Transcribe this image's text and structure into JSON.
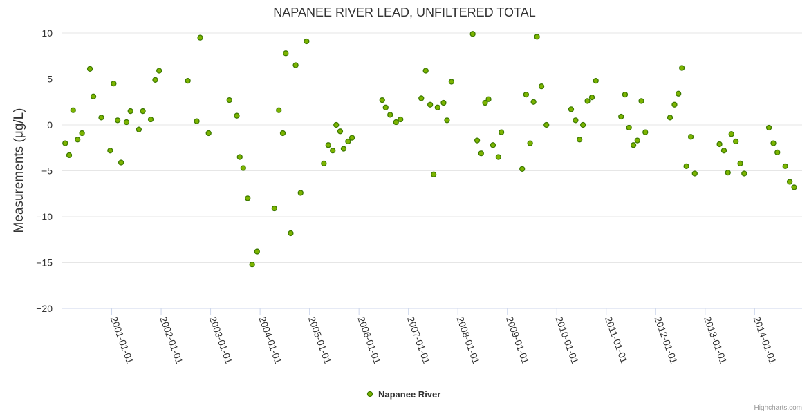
{
  "chart_data": {
    "type": "scatter",
    "title": "NAPANEE RIVER LEAD, UNFILTERED TOTAL",
    "ylabel": "Measurements (μg/L)",
    "xlabel": "",
    "ylim": [
      -20,
      10
    ],
    "yticks": [
      10,
      5,
      0,
      -5,
      -10,
      -15,
      -20
    ],
    "ytick_labels": [
      "10",
      "5",
      "0",
      "−5",
      "−10",
      "−15",
      "−20"
    ],
    "x_is_date": true,
    "xlim": [
      2000.0,
      2014.96
    ],
    "xticks": [
      {
        "value": 2001.0,
        "label": "2001-01-01"
      },
      {
        "value": 2002.0,
        "label": "2002-01-01"
      },
      {
        "value": 2003.0,
        "label": "2003-01-01"
      },
      {
        "value": 2004.0,
        "label": "2004-01-01"
      },
      {
        "value": 2005.0,
        "label": "2005-01-01"
      },
      {
        "value": 2006.0,
        "label": "2006-01-01"
      },
      {
        "value": 2007.0,
        "label": "2007-01-01"
      },
      {
        "value": 2008.0,
        "label": "2008-01-01"
      },
      {
        "value": 2009.0,
        "label": "2009-01-01"
      },
      {
        "value": 2010.0,
        "label": "2010-01-01"
      },
      {
        "value": 2011.0,
        "label": "2011-01-01"
      },
      {
        "value": 2012.0,
        "label": "2012-01-01"
      },
      {
        "value": 2013.0,
        "label": "2013-01-01"
      },
      {
        "value": 2014.0,
        "label": "2014-01-01"
      }
    ],
    "series": [
      {
        "name": "Napanee River",
        "color": "#7cb400",
        "stroke": "#3d7a00",
        "points": [
          {
            "x": 2000.06,
            "y": -2.0
          },
          {
            "x": 2000.14,
            "y": -3.3
          },
          {
            "x": 2000.22,
            "y": 1.6
          },
          {
            "x": 2000.31,
            "y": -1.6
          },
          {
            "x": 2000.4,
            "y": -0.9
          },
          {
            "x": 2000.56,
            "y": 6.1
          },
          {
            "x": 2000.63,
            "y": 3.1
          },
          {
            "x": 2000.79,
            "y": 0.8
          },
          {
            "x": 2000.97,
            "y": -2.8
          },
          {
            "x": 2001.04,
            "y": 4.5
          },
          {
            "x": 2001.12,
            "y": 0.5
          },
          {
            "x": 2001.19,
            "y": -4.1
          },
          {
            "x": 2001.3,
            "y": 0.3
          },
          {
            "x": 2001.38,
            "y": 1.5
          },
          {
            "x": 2001.55,
            "y": -0.5
          },
          {
            "x": 2001.63,
            "y": 1.5
          },
          {
            "x": 2001.79,
            "y": 0.6
          },
          {
            "x": 2001.88,
            "y": 4.9
          },
          {
            "x": 2001.96,
            "y": 5.9
          },
          {
            "x": 2002.54,
            "y": 4.8
          },
          {
            "x": 2002.72,
            "y": 0.4
          },
          {
            "x": 2002.79,
            "y": 9.5
          },
          {
            "x": 2002.96,
            "y": -0.9
          },
          {
            "x": 2003.38,
            "y": 2.7
          },
          {
            "x": 2003.53,
            "y": 1.0
          },
          {
            "x": 2003.59,
            "y": -3.5
          },
          {
            "x": 2003.66,
            "y": -4.7
          },
          {
            "x": 2003.75,
            "y": -8.0
          },
          {
            "x": 2003.84,
            "y": -15.2
          },
          {
            "x": 2003.94,
            "y": -13.8
          },
          {
            "x": 2004.29,
            "y": -9.1
          },
          {
            "x": 2004.38,
            "y": 1.6
          },
          {
            "x": 2004.46,
            "y": -0.9
          },
          {
            "x": 2004.52,
            "y": 7.8
          },
          {
            "x": 2004.62,
            "y": -11.8
          },
          {
            "x": 2004.72,
            "y": 6.5
          },
          {
            "x": 2004.82,
            "y": -7.4
          },
          {
            "x": 2004.94,
            "y": 9.1
          },
          {
            "x": 2005.29,
            "y": -4.2
          },
          {
            "x": 2005.38,
            "y": -2.2
          },
          {
            "x": 2005.47,
            "y": -2.8
          },
          {
            "x": 2005.54,
            "y": 0.0
          },
          {
            "x": 2005.62,
            "y": -0.7
          },
          {
            "x": 2005.69,
            "y": -2.6
          },
          {
            "x": 2005.78,
            "y": -1.8
          },
          {
            "x": 2005.86,
            "y": -1.4
          },
          {
            "x": 2006.47,
            "y": 2.7
          },
          {
            "x": 2006.54,
            "y": 1.9
          },
          {
            "x": 2006.63,
            "y": 1.1
          },
          {
            "x": 2006.75,
            "y": 0.3
          },
          {
            "x": 2006.84,
            "y": 0.6
          },
          {
            "x": 2007.26,
            "y": 2.9
          },
          {
            "x": 2007.35,
            "y": 5.9
          },
          {
            "x": 2007.44,
            "y": 2.2
          },
          {
            "x": 2007.51,
            "y": -5.4
          },
          {
            "x": 2007.59,
            "y": 1.9
          },
          {
            "x": 2007.71,
            "y": 2.4
          },
          {
            "x": 2007.78,
            "y": 0.5
          },
          {
            "x": 2007.87,
            "y": 4.7
          },
          {
            "x": 2008.3,
            "y": 9.9
          },
          {
            "x": 2008.39,
            "y": -1.7
          },
          {
            "x": 2008.47,
            "y": -3.1
          },
          {
            "x": 2008.55,
            "y": 2.4
          },
          {
            "x": 2008.62,
            "y": 2.8
          },
          {
            "x": 2008.71,
            "y": -2.2
          },
          {
            "x": 2008.82,
            "y": -3.5
          },
          {
            "x": 2008.88,
            "y": -0.8
          },
          {
            "x": 2009.3,
            "y": -4.8
          },
          {
            "x": 2009.38,
            "y": 3.3
          },
          {
            "x": 2009.46,
            "y": -2.0
          },
          {
            "x": 2009.53,
            "y": 2.5
          },
          {
            "x": 2009.6,
            "y": 9.6
          },
          {
            "x": 2009.69,
            "y": 4.2
          },
          {
            "x": 2009.79,
            "y": 0.0
          },
          {
            "x": 2010.29,
            "y": 1.7
          },
          {
            "x": 2010.38,
            "y": 0.5
          },
          {
            "x": 2010.46,
            "y": -1.6
          },
          {
            "x": 2010.53,
            "y": 0.0
          },
          {
            "x": 2010.62,
            "y": 2.6
          },
          {
            "x": 2010.71,
            "y": 3.0
          },
          {
            "x": 2010.79,
            "y": 4.8
          },
          {
            "x": 2011.3,
            "y": 0.9
          },
          {
            "x": 2011.38,
            "y": 3.3
          },
          {
            "x": 2011.46,
            "y": -0.3
          },
          {
            "x": 2011.55,
            "y": -2.2
          },
          {
            "x": 2011.63,
            "y": -1.7
          },
          {
            "x": 2011.71,
            "y": 2.6
          },
          {
            "x": 2011.79,
            "y": -0.8
          },
          {
            "x": 2012.29,
            "y": 0.8
          },
          {
            "x": 2012.38,
            "y": 2.2
          },
          {
            "x": 2012.46,
            "y": 3.4
          },
          {
            "x": 2012.53,
            "y": 6.2
          },
          {
            "x": 2012.62,
            "y": -4.5
          },
          {
            "x": 2012.71,
            "y": -1.3
          },
          {
            "x": 2012.79,
            "y": -5.3
          },
          {
            "x": 2013.29,
            "y": -2.1
          },
          {
            "x": 2013.38,
            "y": -2.8
          },
          {
            "x": 2013.46,
            "y": -5.2
          },
          {
            "x": 2013.53,
            "y": -1.0
          },
          {
            "x": 2013.62,
            "y": -1.8
          },
          {
            "x": 2013.71,
            "y": -4.2
          },
          {
            "x": 2013.79,
            "y": -5.3
          },
          {
            "x": 2014.29,
            "y": -0.3
          },
          {
            "x": 2014.38,
            "y": -2.0
          },
          {
            "x": 2014.46,
            "y": -3.0
          },
          {
            "x": 2014.62,
            "y": -4.5
          },
          {
            "x": 2014.71,
            "y": -6.2
          },
          {
            "x": 2014.8,
            "y": -6.8
          }
        ]
      }
    ],
    "legend": [
      {
        "name": "Napanee River",
        "color": "#7cb400"
      }
    ],
    "legend_position": "bottom-center",
    "grid": true,
    "credits": "Highcharts.com"
  }
}
